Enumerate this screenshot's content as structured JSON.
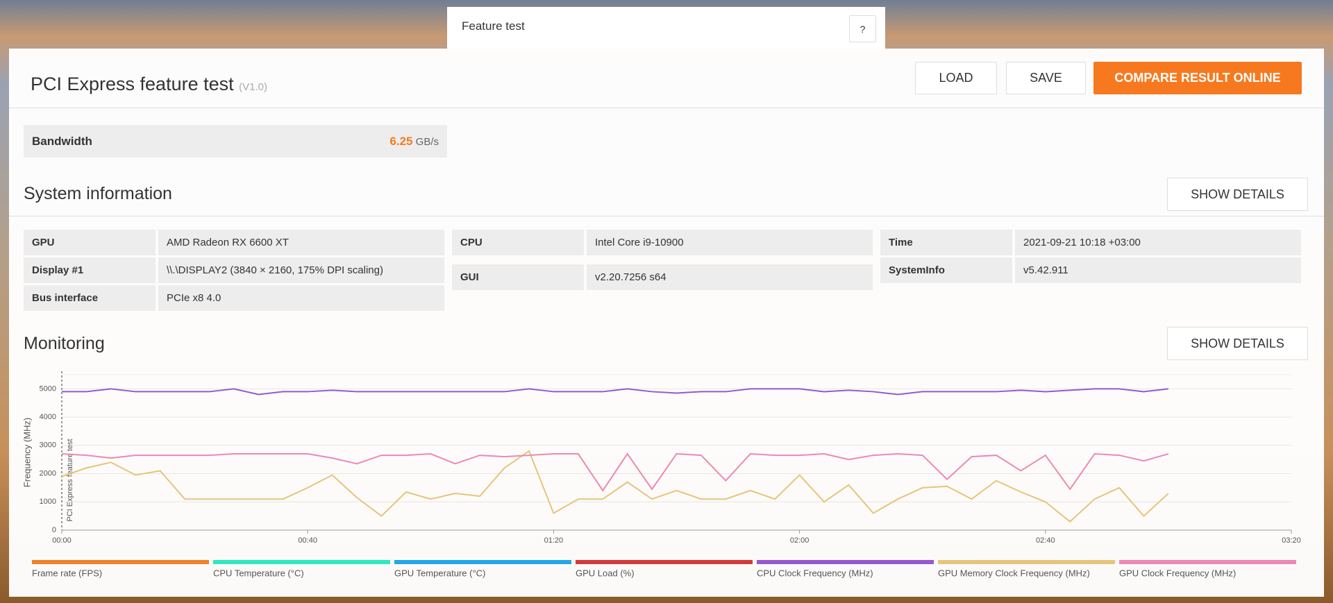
{
  "tab": {
    "title": "Feature test",
    "help": "?"
  },
  "header": {
    "title": "PCI Express feature test",
    "version": "(V1.0)",
    "buttons": [
      "LOAD",
      "SAVE",
      "COMPARE RESULT ONLINE"
    ]
  },
  "result": {
    "label": "Bandwidth",
    "value": 6.25,
    "unit": "GB/s"
  },
  "system_information": {
    "title": "System information",
    "button": "SHOW DETAILS",
    "groups": [
      {
        "rows": [
          [
            "GPU",
            "AMD Radeon RX 6600 XT"
          ],
          [
            "Display #1",
            "\\\\.\\DISPLAY2 (3840 × 2160, 175% DPI scaling)"
          ],
          [
            "Bus interface",
            "PCIe x8 4.0"
          ]
        ]
      },
      {
        "rows": [
          [
            "CPU",
            "Intel Core i9-10900"
          ],
          [
            "GUI",
            "v2.20.7256 s64"
          ]
        ]
      },
      {
        "rows": [
          [
            "Time",
            "2021-09-21 10:18 +03:00"
          ],
          [
            "SystemInfo",
            "v5.42.911"
          ]
        ]
      }
    ]
  },
  "monitoring": {
    "title": "Monitoring",
    "button": "SHOW DETAILS"
  },
  "chart_data": {
    "type": "line",
    "y_label": "Frequency (MHz)",
    "annotation": "PCI Express feature test",
    "x": [
      0,
      4,
      8,
      12,
      16,
      20,
      24,
      28,
      32,
      36,
      40,
      44,
      48,
      52,
      56,
      60,
      64,
      68,
      72,
      76,
      80,
      84,
      88,
      92,
      96,
      100,
      104,
      108,
      112,
      116,
      120,
      124,
      128,
      132,
      136,
      140,
      144,
      148,
      152,
      156,
      160,
      164,
      168,
      172,
      176,
      180
    ],
    "xlim": [
      0,
      200
    ],
    "xticks": [
      {
        "value": 0,
        "label": "00:00"
      },
      {
        "value": 40,
        "label": "00:40"
      },
      {
        "value": 80,
        "label": "01:20"
      },
      {
        "value": 120,
        "label": "02:00"
      },
      {
        "value": 160,
        "label": "02:40"
      },
      {
        "value": 200,
        "label": "03:20"
      }
    ],
    "ylim": [
      0,
      5500
    ],
    "yticks": [
      0,
      1000,
      2000,
      3000,
      4000,
      5000
    ],
    "grid": true,
    "series": [
      {
        "name": "Frame rate (FPS)",
        "color": "#f0812a"
      },
      {
        "name": "CPU Temperature (°C)",
        "color": "#2ee8c0"
      },
      {
        "name": "GPU Temperature (°C)",
        "color": "#22a7e8"
      },
      {
        "name": "GPU Load (%)",
        "color": "#d43a3a"
      },
      {
        "name": "CPU Clock Frequency (MHz)",
        "color": "#9658d0",
        "values": [
          4900,
          4900,
          5000,
          4900,
          4900,
          4900,
          4900,
          5000,
          4800,
          4900,
          4900,
          4950,
          4900,
          4900,
          4900,
          4900,
          4900,
          4900,
          4900,
          5000,
          4900,
          4900,
          4900,
          5000,
          4900,
          4850,
          4900,
          4900,
          5000,
          5000,
          5000,
          4900,
          4950,
          4900,
          4800,
          4900,
          4900,
          4900,
          4900,
          4950,
          4900,
          4950,
          5000,
          5000,
          4900,
          5000
        ]
      },
      {
        "name": "GPU Memory Clock Frequency (MHz)",
        "color": "#e6c47a",
        "values": [
          1900,
          2200,
          2400,
          1950,
          2100,
          1100,
          1100,
          1100,
          1100,
          1100,
          1500,
          1950,
          1150,
          500,
          1350,
          1100,
          1300,
          1200,
          2200,
          2800,
          600,
          1100,
          1100,
          1700,
          1100,
          1400,
          1100,
          1100,
          1400,
          1100,
          1950,
          1000,
          1600,
          600,
          1100,
          1500,
          1550,
          1100,
          1750,
          1350,
          1000,
          300,
          1100,
          1500,
          500,
          1300
        ]
      },
      {
        "name": "GPU Clock Frequency (MHz)",
        "color": "#ec88b6",
        "values": [
          2700,
          2650,
          2550,
          2650,
          2650,
          2650,
          2650,
          2700,
          2700,
          2700,
          2700,
          2550,
          2350,
          2650,
          2650,
          2700,
          2350,
          2650,
          2600,
          2650,
          2700,
          2700,
          1400,
          2700,
          1450,
          2700,
          2650,
          1750,
          2700,
          2650,
          2650,
          2700,
          2500,
          2650,
          2700,
          2650,
          1800,
          2600,
          2650,
          2100,
          2650,
          1450,
          2700,
          2650,
          2450,
          2700
        ]
      }
    ]
  }
}
